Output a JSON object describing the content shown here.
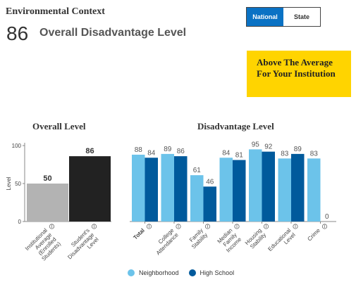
{
  "header": {
    "section_title": "Environmental Context",
    "score": "86",
    "score_label": "Overall Disadvantage Level"
  },
  "toggle": {
    "national_label": "National",
    "state_label": "State",
    "active": "National"
  },
  "callout": {
    "text": "Above The Average For Your Institution",
    "color": "#ffd400"
  },
  "chart_data": [
    {
      "type": "bar",
      "title": "Overall Level",
      "ylabel": "Level",
      "ylim": [
        0,
        100
      ],
      "yticks": [
        "0",
        "50",
        "100"
      ],
      "categories": [
        "Institutional Average (Enrolled Students)",
        "Student's Disadvantage Level"
      ],
      "values": [
        50,
        86
      ],
      "colors": [
        "#b3b3b3",
        "#222222"
      ],
      "grid": false
    },
    {
      "type": "bar",
      "title": "Disadvantage Level",
      "ylim": [
        0,
        100
      ],
      "categories": [
        "Total",
        "College Attendance",
        "Family Stability",
        "Median Family Income",
        "Housing Stability",
        "Educational Level",
        "Crime"
      ],
      "series": [
        {
          "name": "Neighborhood",
          "values": [
            88,
            89,
            61,
            84,
            95,
            83,
            83
          ],
          "color": "#6cc3ea"
        },
        {
          "name": "High School",
          "values": [
            84,
            86,
            46,
            81,
            92,
            89,
            0
          ],
          "color": "#005a9c"
        }
      ],
      "legend": "bottom",
      "grid": false
    }
  ],
  "icons": {
    "info": "info-circle-icon"
  }
}
